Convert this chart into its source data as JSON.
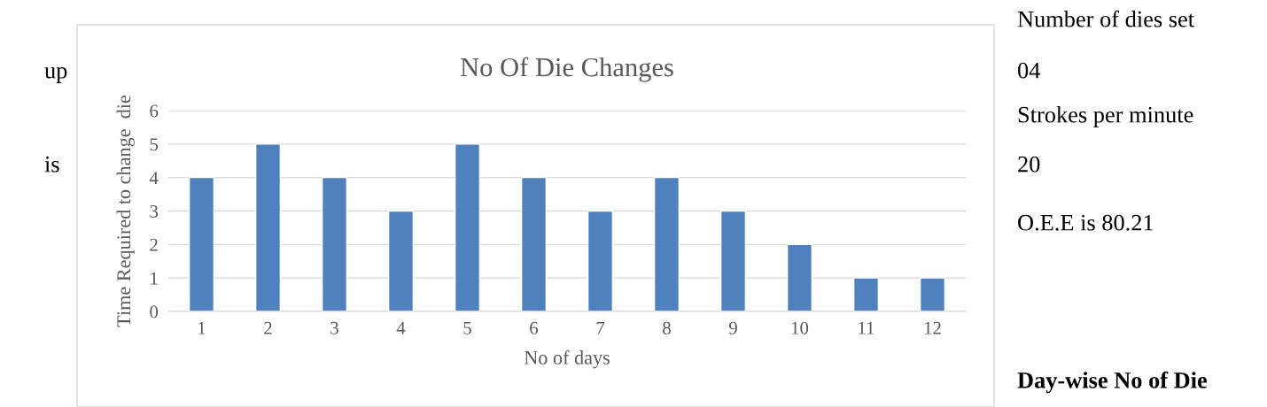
{
  "chart_data": {
    "type": "bar",
    "title": "No Of Die Changes",
    "xlabel": "No of days",
    "ylabel": "Time Required to change  die",
    "categories": [
      "1",
      "2",
      "3",
      "4",
      "5",
      "6",
      "7",
      "8",
      "9",
      "10",
      "11",
      "12"
    ],
    "values": [
      4,
      5,
      4,
      3,
      5,
      4,
      3,
      4,
      3,
      2,
      1,
      1
    ],
    "color": "#4f81bd",
    "ylim": [
      0,
      6
    ],
    "yticks": [
      0,
      1,
      2,
      3,
      4,
      5,
      6
    ],
    "grid": "y",
    "legend": false,
    "annotations": [
      "up",
      "is",
      "Number of dies set",
      "04",
      "Strokes per minute",
      "20",
      "O.E.E is 80.21",
      "Day-wise No of Die"
    ]
  }
}
